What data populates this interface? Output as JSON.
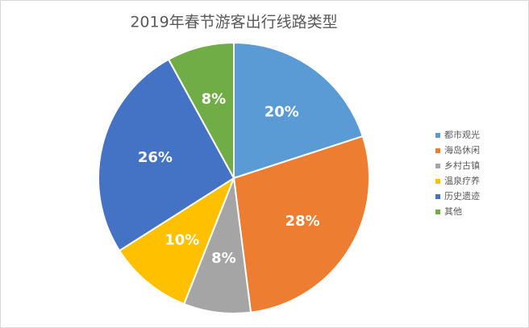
{
  "chart_data": {
    "type": "pie",
    "title": "2019年春节游客出行线路类型",
    "categories": [
      "都市观光",
      "海岛休闲",
      "乡村古镇",
      "温泉疗养",
      "历史遗迹",
      "其他"
    ],
    "values": [
      20,
      28,
      8,
      10,
      26,
      8
    ],
    "value_labels": [
      "20%",
      "28%",
      "8%",
      "10%",
      "26%",
      "8%"
    ],
    "colors": [
      "#5b9bd5",
      "#ed7d31",
      "#a5a5a5",
      "#ffc000",
      "#4472c4",
      "#70ad47"
    ],
    "legend": "right"
  }
}
